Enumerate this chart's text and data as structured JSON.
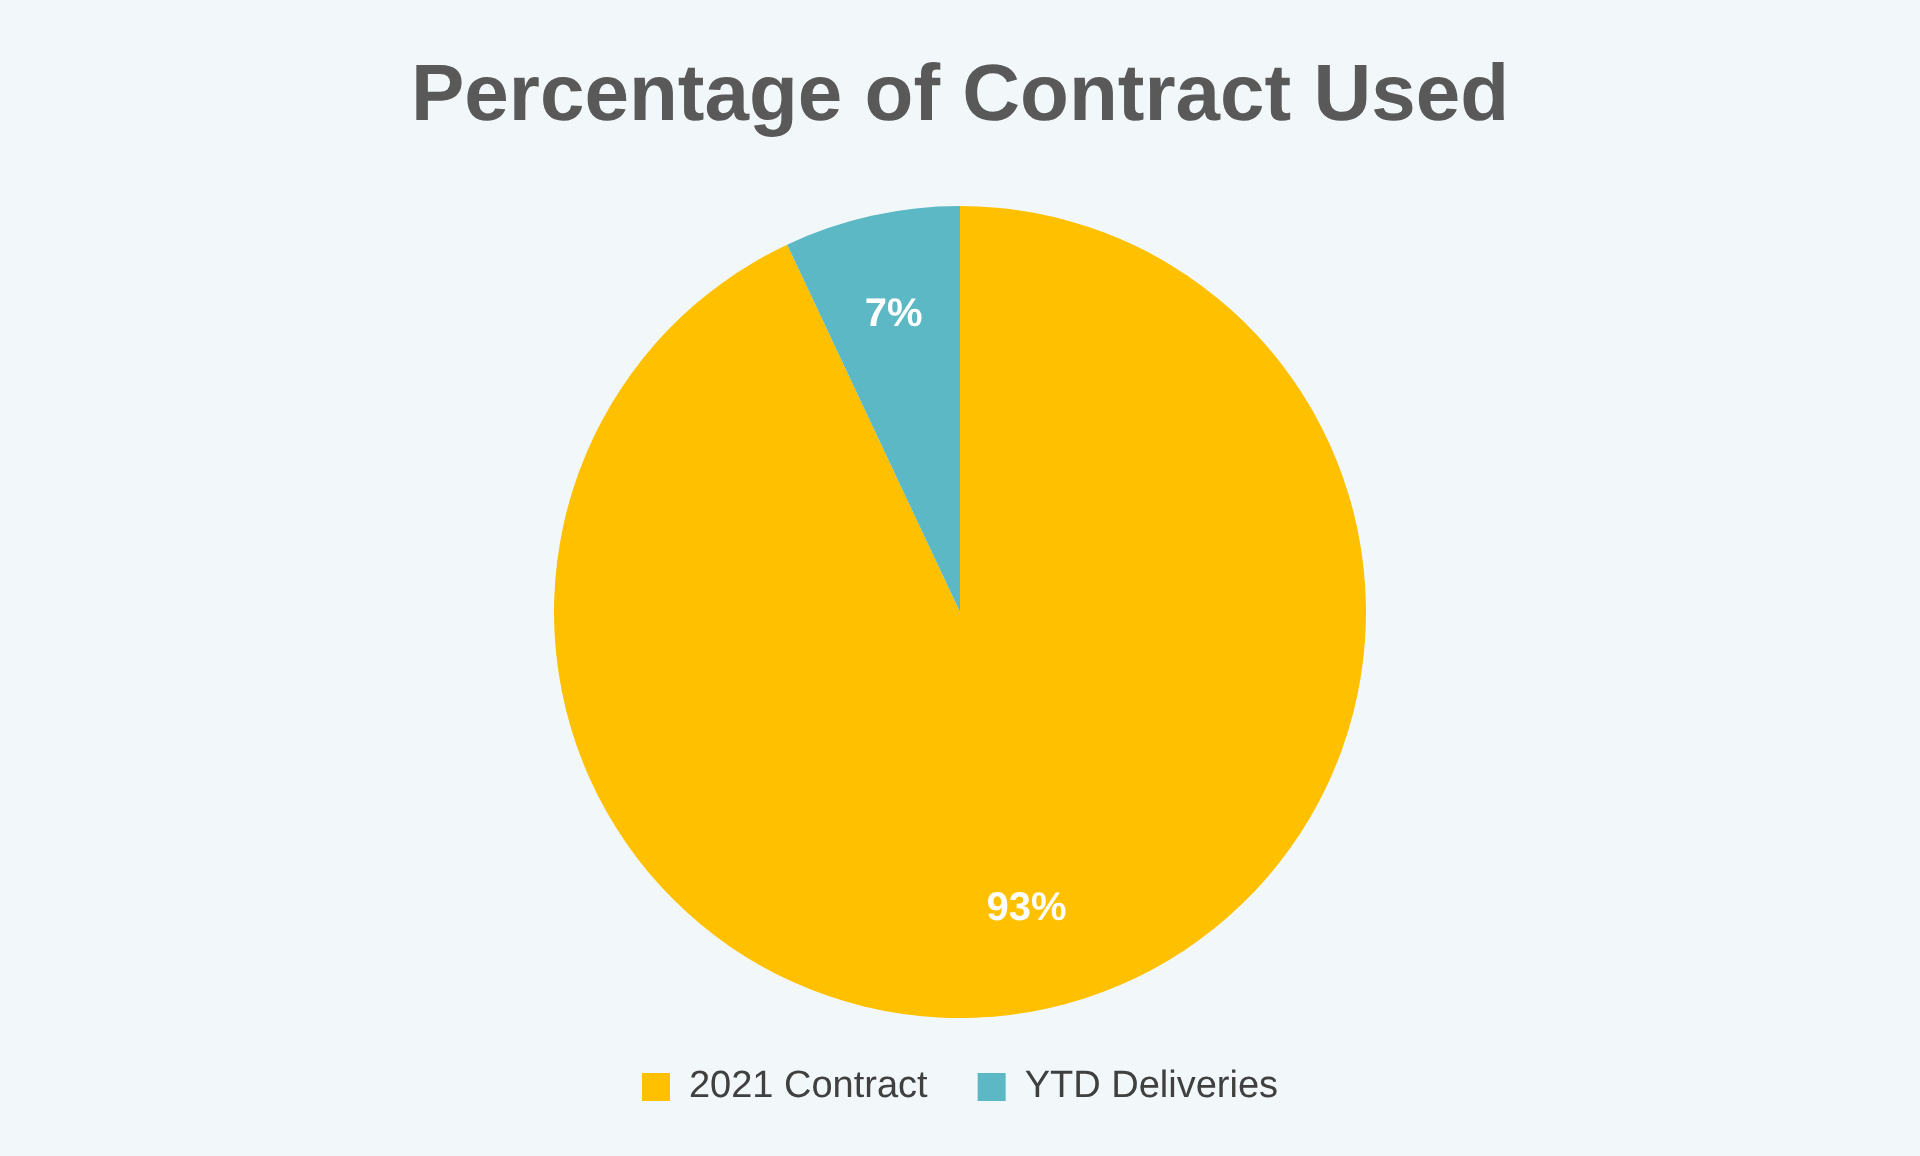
{
  "chart_data": {
    "type": "pie",
    "title": "Percentage of Contract Used",
    "categories": [
      "2021 Contract",
      "YTD Deliveries"
    ],
    "values": [
      93,
      7
    ],
    "colors": [
      "#ffc000",
      "#5bb8c4"
    ],
    "value_labels": [
      "93%",
      "7%"
    ],
    "legend": "bottom"
  }
}
